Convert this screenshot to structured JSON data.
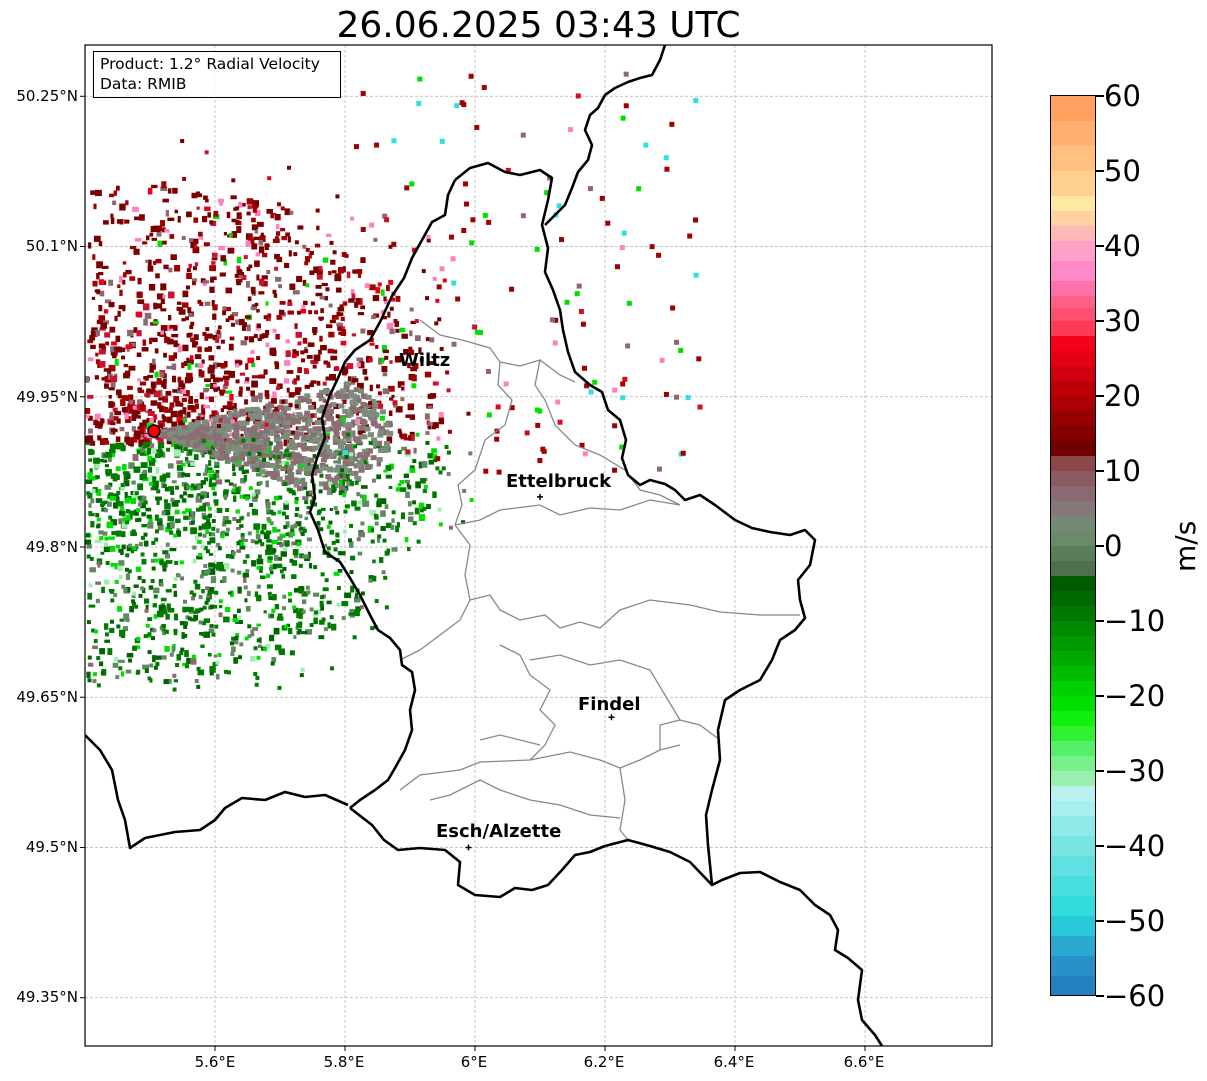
{
  "title": "26.06.2025 03:43 UTC",
  "info_box": {
    "product": "Product: 1.2° Radial Velocity",
    "data": "Data: RMIB"
  },
  "axes": {
    "lat_labels": [
      "50.25°N",
      "50.1°N",
      "49.95°N",
      "49.8°N",
      "49.65°N",
      "49.5°N",
      "49.35°N"
    ],
    "lon_labels": [
      "5.6°E",
      "5.8°E",
      "6°E",
      "6.2°E",
      "6.4°E",
      "6.6°E"
    ]
  },
  "places": [
    {
      "name": "Wiltz",
      "lon": 5.93,
      "lat": 49.97
    },
    {
      "name": "Ettelbruck",
      "lon": 6.1,
      "lat": 49.85
    },
    {
      "name": "Findel",
      "lon": 6.21,
      "lat": 49.63
    },
    {
      "name": "Esch/Alzette",
      "lon": 5.99,
      "lat": 49.5
    }
  ],
  "radar_site": {
    "lon": 5.505,
    "lat": 49.915
  },
  "colorbar": {
    "unit": "m/s",
    "ticks": [
      "60",
      "50",
      "40",
      "30",
      "20",
      "10",
      "0",
      "−10",
      "−20",
      "−30",
      "−40",
      "−50",
      "−60"
    ],
    "min": -60,
    "max": 60,
    "colors": {
      "outbound_strong": "#fb9a5a",
      "outbound_mid": "#ff80c0",
      "outbound_red": "#e8001a",
      "outbound_dark": "#7a0000",
      "near_zero_pos": "#8a6a70",
      "near_zero_neg": "#5f8a62",
      "inbound_dark": "#006400",
      "inbound_green": "#00e000",
      "inbound_light": "#9fefb0",
      "inbound_cyan": "#30e0e0",
      "inbound_blue": "#2080c0"
    }
  }
}
